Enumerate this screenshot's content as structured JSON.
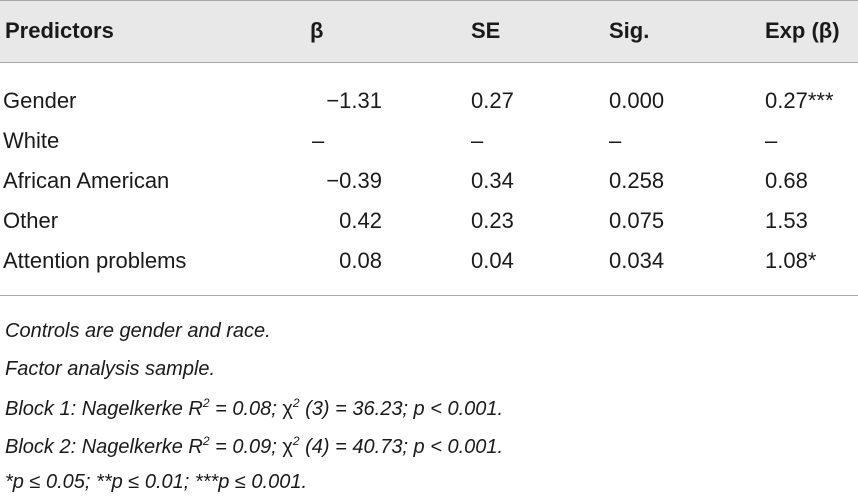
{
  "table": {
    "headers": {
      "predictors": "Predictors",
      "beta": "β",
      "se": "SE",
      "sig": "Sig.",
      "expb": "Exp (β)"
    },
    "rows": [
      {
        "predictor": "Gender",
        "beta": "−1.31",
        "se": "0.27",
        "sig": "0.000",
        "expb": "0.27***"
      },
      {
        "predictor": "White",
        "beta": "–",
        "se": "–",
        "sig": "–",
        "expb": "–"
      },
      {
        "predictor": "African American",
        "beta": "−0.39",
        "se": "0.34",
        "sig": "0.258",
        "expb": "0.68"
      },
      {
        "predictor": "Other",
        "beta": "0.42",
        "se": "0.23",
        "sig": "0.075",
        "expb": "1.53"
      },
      {
        "predictor": "Attention problems",
        "beta": "0.08",
        "se": "0.04",
        "sig": "0.034",
        "expb": "1.08*"
      }
    ]
  },
  "notes": {
    "controls": "Controls are gender and race.",
    "sample": "Factor analysis sample.",
    "block1": {
      "prefix": "Block 1: Nagelkerke R",
      "r_exp": "2",
      "r_val": " = 0.08; ",
      "chi": "χ",
      "chi_exp": "2",
      "chi_rest": " (3) = 36.23; p < 0.001."
    },
    "block2": {
      "prefix": "Block 2: Nagelkerke R",
      "r_exp": "2",
      "r_val": " = 0.09; ",
      "chi": "χ",
      "chi_exp": "2",
      "chi_rest": " (4) = 40.73; p < 0.001."
    },
    "significance": "*p ≤ 0.05; **p ≤ 0.01; ***p ≤ 0.001."
  },
  "colors": {
    "header_bg": "#e8e8e8",
    "rule": "#a8a8a8",
    "text": "#1a1a1a"
  }
}
